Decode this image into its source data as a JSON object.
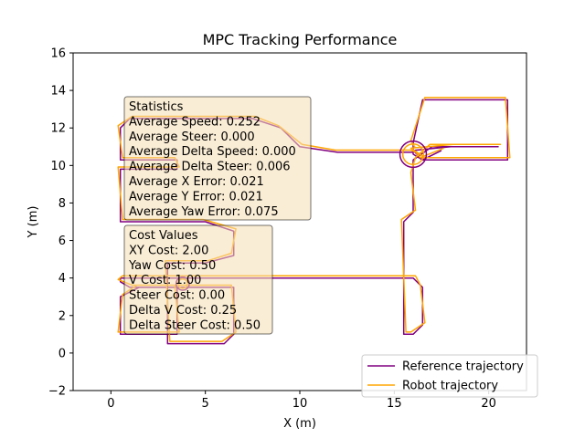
{
  "chart_data": {
    "type": "line",
    "title": "MPC Tracking Performance",
    "xlabel": "X (m)",
    "ylabel": "Y (m)",
    "xlim": [
      -2,
      22
    ],
    "ylim": [
      -2,
      16
    ],
    "xticks": [
      0,
      5,
      10,
      15,
      20
    ],
    "yticks": [
      -2,
      0,
      2,
      4,
      6,
      8,
      10,
      12,
      14,
      16
    ],
    "grid": false,
    "legend_position": "lower-right",
    "series": [
      {
        "name": "Reference trajectory",
        "color": "#800080",
        "offset": 0.0,
        "x": [
          16,
          16,
          16.5,
          21,
          21,
          16.5,
          16,
          16,
          15.5,
          12,
          10,
          9,
          7.5,
          5,
          1,
          0.5,
          0.5,
          3.5,
          3.5,
          0.5,
          0.5,
          5,
          6.5,
          6.5,
          5,
          3,
          3,
          6,
          6.5,
          6.5,
          4,
          1.5,
          0.5,
          0.5,
          3.5,
          3.5,
          1,
          0.5,
          0.5,
          1.5,
          16,
          16.5,
          16.5,
          16,
          15.5,
          15.5,
          16,
          16,
          16,
          17,
          20.5,
          20.5,
          18,
          16,
          16.5,
          16.5,
          17.5
        ],
        "y": [
          10.8,
          11.2,
          13.5,
          13.5,
          10.3,
          10.3,
          10.6,
          10.7,
          10.7,
          10.7,
          11,
          12,
          12.5,
          12.5,
          12.5,
          12,
          10.3,
          10.3,
          9.8,
          9.8,
          7,
          7,
          6.5,
          5.2,
          4.8,
          4.8,
          0.5,
          0.5,
          1,
          3.5,
          3.5,
          3.5,
          3,
          1,
          1,
          3.5,
          3.5,
          3.8,
          4,
          4,
          4,
          3.5,
          1.5,
          1,
          1,
          7,
          7.5,
          9.5,
          10.3,
          11,
          11,
          11,
          11,
          10.8,
          10.3,
          10.3,
          10.8
        ]
      },
      {
        "name": "Robot trajectory",
        "color": "#ffa500",
        "offset": 0.12,
        "x": [
          16,
          16,
          16.5,
          21,
          21,
          16.5,
          16,
          16,
          15.5,
          12,
          10,
          9,
          7.5,
          5,
          1,
          0.5,
          0.5,
          3.5,
          3.5,
          0.5,
          0.5,
          5,
          6.5,
          6.5,
          5,
          3,
          3,
          6,
          6.5,
          6.5,
          4,
          1.5,
          0.5,
          0.5,
          3.5,
          3.5,
          1,
          0.5,
          0.5,
          1.5,
          16,
          16.5,
          16.5,
          16,
          15.5,
          15.5,
          16,
          16,
          16,
          17,
          20.5,
          20.5,
          18,
          16,
          16.5,
          16.5,
          17.5
        ],
        "y": [
          10.8,
          11.2,
          13.5,
          13.5,
          10.3,
          10.3,
          10.6,
          10.7,
          10.7,
          10.7,
          11,
          12,
          12.5,
          12.5,
          12.5,
          12,
          10.3,
          10.3,
          9.8,
          9.8,
          7,
          7,
          6.5,
          5.2,
          4.8,
          4.8,
          0.5,
          0.5,
          1,
          3.5,
          3.5,
          3.5,
          3,
          1,
          1,
          3.5,
          3.5,
          3.8,
          4,
          4,
          4,
          3.5,
          1.5,
          1,
          1,
          7,
          7.5,
          9.5,
          10.3,
          11,
          11,
          11,
          11,
          10.8,
          10.3,
          10.3,
          10.8
        ]
      }
    ],
    "circles": [
      {
        "cx": 16.0,
        "cy": 10.6,
        "r": 0.7,
        "color": "#800080"
      },
      {
        "cx": 16.0,
        "cy": 10.6,
        "r": 0.55,
        "color": "#ffa500"
      },
      {
        "cx": 3.8,
        "cy": 3.7,
        "r": 0.35,
        "color": "#800080"
      },
      {
        "cx": 3.8,
        "cy": 3.7,
        "r": 0.25,
        "color": "#ffa500"
      }
    ],
    "annotations": [
      {
        "name": "statistics-box",
        "lines": [
          "Statistics",
          "Average Speed: 0.252",
          "Average Steer: 0.000",
          "Average Delta Speed: 0.000",
          "Average Delta Steer: 0.006",
          "Average X Error: 0.021",
          "Average Y Error: 0.021",
          "Average Yaw Error: 0.075"
        ]
      },
      {
        "name": "cost-values-box",
        "lines": [
          "Cost Values",
          "XY Cost: 2.00",
          "Yaw Cost: 0.50",
          "V Cost: 1.00",
          "Steer Cost: 0.00",
          "Delta V Cost: 0.25",
          "Delta Steer Cost: 0.50"
        ]
      }
    ],
    "annotation_bg": "#f5deb3"
  }
}
